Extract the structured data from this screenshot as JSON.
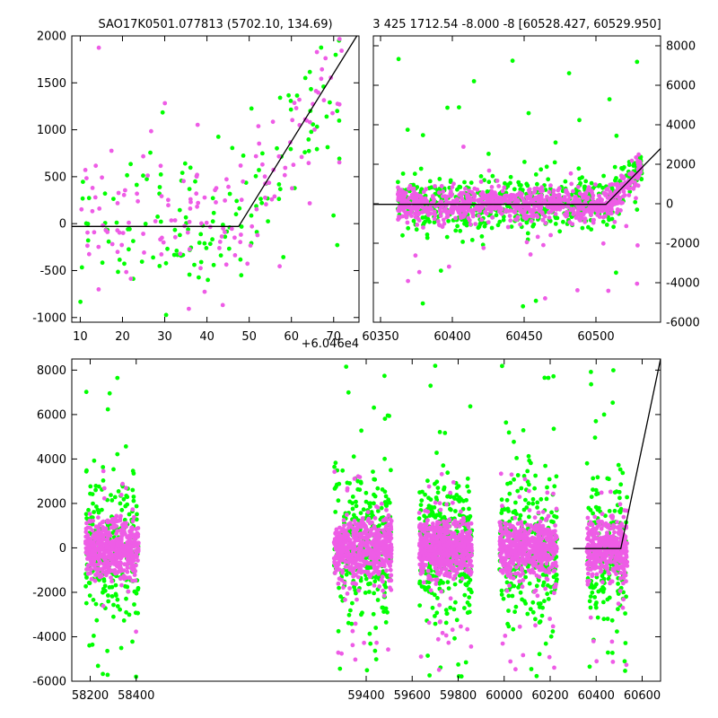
{
  "colors": {
    "green": "#00ff00",
    "magenta": "#ee5ce6",
    "model": "#000000",
    "axes": "#000000"
  },
  "chart_data": [
    {
      "panel": "top-left",
      "type": "scatter",
      "title": "SAO17K0501.077813 (5702.10, 134.69)",
      "x_offset_label": "+6.046e4",
      "xlim": [
        8,
        76
      ],
      "ylim": [
        -1050,
        2000
      ],
      "xticks": [
        10,
        20,
        30,
        40,
        50,
        60,
        70
      ],
      "yticks": [
        -1000,
        -500,
        0,
        500,
        1000,
        1500,
        2000
      ],
      "yaxis_side": "left",
      "model_line": [
        [
          8,
          -30
        ],
        [
          47.5,
          -30
        ],
        [
          75.5,
          2000
        ]
      ],
      "series": [
        {
          "color": "green",
          "count": 150,
          "xrange": [
            10,
            72
          ],
          "ypattern": "flat-then-rise",
          "base": -30,
          "breakpoint": 47.5,
          "slope": 71,
          "scatter": 420,
          "outlier_frac": 0.05,
          "outlier_range": [
            -1000,
            2000
          ],
          "seed": 11
        },
        {
          "color": "magenta",
          "count": 150,
          "xrange": [
            10,
            72
          ],
          "ypattern": "flat-then-rise",
          "base": -30,
          "breakpoint": 47.5,
          "slope": 71,
          "scatter": 380,
          "outlier_frac": 0.04,
          "outlier_range": [
            -1000,
            2000
          ],
          "seed": 12
        }
      ]
    },
    {
      "panel": "top-right",
      "type": "scatter",
      "title": "3 425 1712.54 -8.000 -8 [60528.427, 60529.950]",
      "xlim": [
        60345,
        60545
      ],
      "ylim": [
        -6000,
        8500
      ],
      "xticks": [
        60350,
        60400,
        60450,
        60500
      ],
      "yticks": [
        -6000,
        -4000,
        -2000,
        0,
        2000,
        4000,
        6000,
        8000
      ],
      "yaxis_side": "right",
      "model_line": [
        [
          60345,
          -30
        ],
        [
          60507,
          -30
        ],
        [
          60545,
          2800
        ]
      ],
      "series": [
        {
          "color": "green",
          "count": 650,
          "xrange": [
            60362,
            60532
          ],
          "ypattern": "flat-then-rise",
          "base": -30,
          "breakpoint": 60507,
          "slope": 75,
          "scatter": 650,
          "outlier_frac": 0.06,
          "outlier_range": [
            -5500,
            8000
          ],
          "seed": 21
        },
        {
          "color": "magenta",
          "count": 900,
          "xrange": [
            60362,
            60532
          ],
          "ypattern": "flat-then-rise",
          "base": -30,
          "breakpoint": 60507,
          "slope": 75,
          "scatter": 420,
          "outlier_frac": 0.03,
          "outlier_range": [
            -5000,
            3000
          ],
          "seed": 22
        }
      ]
    },
    {
      "panel": "bottom",
      "type": "scatter",
      "xlim": [
        58120,
        60680
      ],
      "ylim": [
        -6000,
        8500
      ],
      "xticks": [
        58200,
        58400,
        59400,
        59600,
        59800,
        60000,
        60200,
        60400,
        60600
      ],
      "yticks": [
        -6000,
        -4000,
        -2000,
        0,
        2000,
        4000,
        6000,
        8000
      ],
      "yaxis_side": "left",
      "model_line": [
        [
          60300,
          -30
        ],
        [
          60507,
          -30
        ],
        [
          60680,
          8500
        ]
      ],
      "seasons": [
        {
          "xrange": [
            58180,
            58410
          ],
          "n_green": 260,
          "n_magenta": 520,
          "seed": 31
        },
        {
          "xrange": [
            59260,
            59510
          ],
          "n_green": 300,
          "n_magenta": 560,
          "seed": 32
        },
        {
          "xrange": [
            59630,
            59860
          ],
          "n_green": 340,
          "n_magenta": 620,
          "seed": 33
        },
        {
          "xrange": [
            59980,
            60230
          ],
          "n_green": 300,
          "n_magenta": 560,
          "seed": 34
        },
        {
          "xrange": [
            60360,
            60535
          ],
          "n_green": 220,
          "n_magenta": 420,
          "seed": 35
        }
      ]
    }
  ]
}
